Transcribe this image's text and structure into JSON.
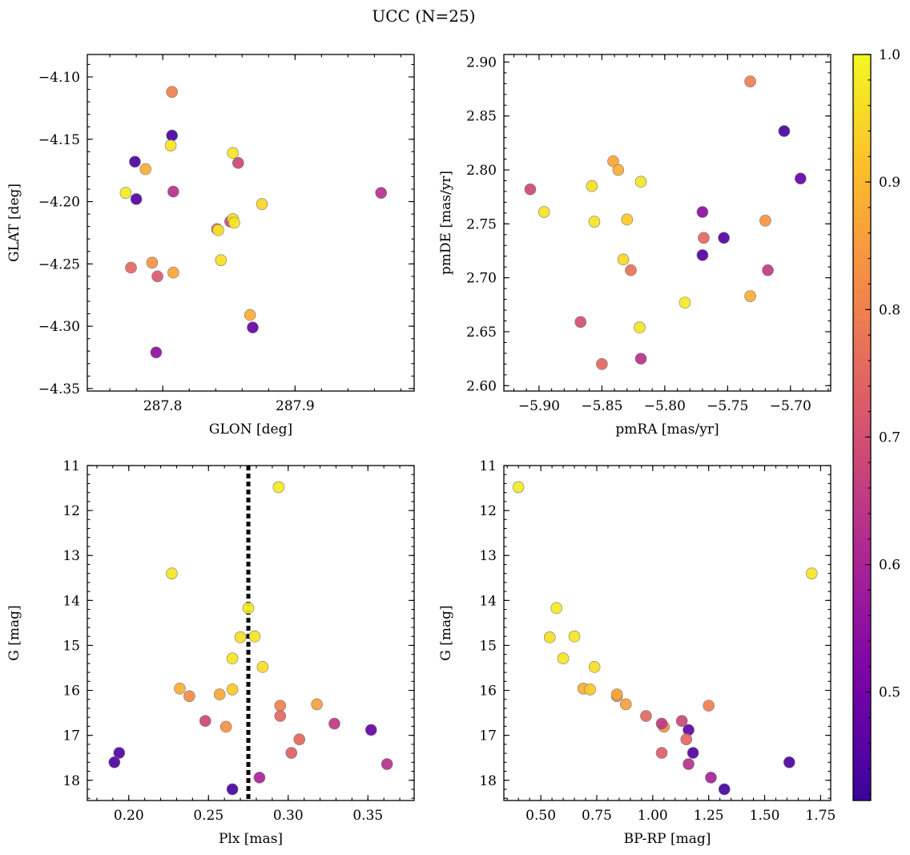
{
  "figure": {
    "suptitle": "UCC (N=25)"
  },
  "colorbar": {
    "colormap": "plasma",
    "range": [
      0.415,
      1.0
    ],
    "ticks": [
      0.5,
      0.6,
      0.7,
      0.8,
      0.9,
      1.0
    ],
    "tick_labels": [
      "0.5",
      "0.6",
      "0.7",
      "0.8",
      "0.9",
      "1.0"
    ]
  },
  "chart_data": [
    {
      "type": "scatter",
      "xlabel": "GLON [deg]",
      "ylabel": "GLAT [deg]",
      "xlim": [
        287.743,
        287.99
      ],
      "ylim": [
        -4.352,
        -4.082
      ],
      "yinvert": false,
      "xticks": [
        287.8,
        287.9
      ],
      "xtick_labels": [
        "287.8",
        "287.9"
      ],
      "yticks": [
        -4.35,
        -4.3,
        -4.25,
        -4.2,
        -4.15,
        -4.1
      ],
      "ytick_labels": [
        "−4.35",
        "−4.30",
        "−4.25",
        "−4.20",
        "−4.15",
        "−4.10"
      ],
      "points": [
        {
          "x": 287.807,
          "y": -4.112,
          "c": 0.8
        },
        {
          "x": 287.807,
          "y": -4.147,
          "c": 0.43
        },
        {
          "x": 287.806,
          "y": -4.155,
          "c": 0.97
        },
        {
          "x": 287.779,
          "y": -4.168,
          "c": 0.45
        },
        {
          "x": 287.787,
          "y": -4.174,
          "c": 0.88
        },
        {
          "x": 287.853,
          "y": -4.161,
          "c": 0.97
        },
        {
          "x": 287.857,
          "y": -4.169,
          "c": 0.68
        },
        {
          "x": 287.772,
          "y": -4.193,
          "c": 0.98
        },
        {
          "x": 287.78,
          "y": -4.198,
          "c": 0.45
        },
        {
          "x": 287.808,
          "y": -4.192,
          "c": 0.63
        },
        {
          "x": 287.965,
          "y": -4.193,
          "c": 0.63
        },
        {
          "x": 287.875,
          "y": -4.202,
          "c": 0.95
        },
        {
          "x": 287.851,
          "y": -4.216,
          "c": 0.69
        },
        {
          "x": 287.853,
          "y": -4.214,
          "c": 0.96
        },
        {
          "x": 287.854,
          "y": -4.217,
          "c": 0.97
        },
        {
          "x": 287.841,
          "y": -4.222,
          "c": 0.78
        },
        {
          "x": 287.842,
          "y": -4.223,
          "c": 0.97
        },
        {
          "x": 287.844,
          "y": -4.247,
          "c": 0.96
        },
        {
          "x": 287.776,
          "y": -4.253,
          "c": 0.75
        },
        {
          "x": 287.792,
          "y": -4.249,
          "c": 0.84
        },
        {
          "x": 287.808,
          "y": -4.257,
          "c": 0.87
        },
        {
          "x": 287.796,
          "y": -4.26,
          "c": 0.72
        },
        {
          "x": 287.866,
          "y": -4.291,
          "c": 0.88
        },
        {
          "x": 287.868,
          "y": -4.301,
          "c": 0.48
        },
        {
          "x": 287.795,
          "y": -4.321,
          "c": 0.55
        }
      ]
    },
    {
      "type": "scatter",
      "xlabel": "pmRA [mas/yr]",
      "ylabel": "pmDE [mas/yr]",
      "xlim": [
        -5.928,
        -5.668
      ],
      "ylim": [
        2.595,
        2.907
      ],
      "yinvert": false,
      "xticks": [
        -5.9,
        -5.85,
        -5.8,
        -5.75,
        -5.7
      ],
      "xtick_labels": [
        "−5.90",
        "−5.85",
        "−5.80",
        "−5.75",
        "−5.70"
      ],
      "yticks": [
        2.6,
        2.65,
        2.7,
        2.75,
        2.8,
        2.85,
        2.9
      ],
      "ytick_labels": [
        "2.60",
        "2.65",
        "2.70",
        "2.75",
        "2.80",
        "2.85",
        "2.90"
      ],
      "points": [
        {
          "x": -5.732,
          "y": 2.882,
          "c": 0.8
        },
        {
          "x": -5.705,
          "y": 2.836,
          "c": 0.43
        },
        {
          "x": -5.841,
          "y": 2.808,
          "c": 0.87
        },
        {
          "x": -5.837,
          "y": 2.8,
          "c": 0.88
        },
        {
          "x": -5.692,
          "y": 2.792,
          "c": 0.48
        },
        {
          "x": -5.819,
          "y": 2.789,
          "c": 0.97
        },
        {
          "x": -5.858,
          "y": 2.785,
          "c": 0.96
        },
        {
          "x": -5.907,
          "y": 2.782,
          "c": 0.68
        },
        {
          "x": -5.896,
          "y": 2.761,
          "c": 0.97
        },
        {
          "x": -5.77,
          "y": 2.761,
          "c": 0.55
        },
        {
          "x": -5.856,
          "y": 2.752,
          "c": 0.97
        },
        {
          "x": -5.83,
          "y": 2.754,
          "c": 0.93
        },
        {
          "x": -5.72,
          "y": 2.753,
          "c": 0.84
        },
        {
          "x": -5.769,
          "y": 2.737,
          "c": 0.75
        },
        {
          "x": -5.753,
          "y": 2.737,
          "c": 0.45
        },
        {
          "x": -5.833,
          "y": 2.717,
          "c": 0.95
        },
        {
          "x": -5.827,
          "y": 2.707,
          "c": 0.77
        },
        {
          "x": -5.718,
          "y": 2.707,
          "c": 0.65
        },
        {
          "x": -5.77,
          "y": 2.721,
          "c": 0.45
        },
        {
          "x": -5.732,
          "y": 2.683,
          "c": 0.88
        },
        {
          "x": -5.784,
          "y": 2.677,
          "c": 0.98
        },
        {
          "x": -5.867,
          "y": 2.659,
          "c": 0.7
        },
        {
          "x": -5.82,
          "y": 2.654,
          "c": 0.97
        },
        {
          "x": -5.819,
          "y": 2.625,
          "c": 0.63
        },
        {
          "x": -5.85,
          "y": 2.62,
          "c": 0.75
        }
      ]
    },
    {
      "type": "scatter",
      "xlabel": "Plx [mas]",
      "ylabel": "G [mag]",
      "xlim": [
        0.174,
        0.379
      ],
      "ylim": [
        18.45,
        11.0
      ],
      "yinvert": true,
      "xticks": [
        0.2,
        0.25,
        0.3,
        0.35
      ],
      "xtick_labels": [
        "0.20",
        "0.25",
        "0.30",
        "0.35"
      ],
      "yticks": [
        11,
        12,
        13,
        14,
        15,
        16,
        17,
        18
      ],
      "ytick_labels": [
        "11",
        "12",
        "13",
        "14",
        "15",
        "16",
        "17",
        "18"
      ],
      "vline": {
        "x": 0.275,
        "style": "dotted"
      },
      "points": [
        {
          "x": 0.294,
          "y": 11.48,
          "c": 0.98
        },
        {
          "x": 0.227,
          "y": 13.4,
          "c": 0.97
        },
        {
          "x": 0.275,
          "y": 14.17,
          "c": 0.98
        },
        {
          "x": 0.27,
          "y": 14.82,
          "c": 0.96
        },
        {
          "x": 0.279,
          "y": 14.8,
          "c": 0.97
        },
        {
          "x": 0.265,
          "y": 15.29,
          "c": 0.97
        },
        {
          "x": 0.284,
          "y": 15.48,
          "c": 0.96
        },
        {
          "x": 0.232,
          "y": 15.96,
          "c": 0.88
        },
        {
          "x": 0.265,
          "y": 15.98,
          "c": 0.93
        },
        {
          "x": 0.238,
          "y": 16.13,
          "c": 0.82
        },
        {
          "x": 0.257,
          "y": 16.09,
          "c": 0.87
        },
        {
          "x": 0.295,
          "y": 16.34,
          "c": 0.8
        },
        {
          "x": 0.318,
          "y": 16.31,
          "c": 0.86
        },
        {
          "x": 0.295,
          "y": 16.57,
          "c": 0.75
        },
        {
          "x": 0.248,
          "y": 16.68,
          "c": 0.68
        },
        {
          "x": 0.261,
          "y": 16.81,
          "c": 0.83
        },
        {
          "x": 0.329,
          "y": 16.74,
          "c": 0.65
        },
        {
          "x": 0.352,
          "y": 16.88,
          "c": 0.48
        },
        {
          "x": 0.307,
          "y": 17.09,
          "c": 0.75
        },
        {
          "x": 0.302,
          "y": 17.39,
          "c": 0.73
        },
        {
          "x": 0.194,
          "y": 17.39,
          "c": 0.45
        },
        {
          "x": 0.191,
          "y": 17.6,
          "c": 0.44
        },
        {
          "x": 0.362,
          "y": 17.64,
          "c": 0.63
        },
        {
          "x": 0.282,
          "y": 17.94,
          "c": 0.6
        },
        {
          "x": 0.265,
          "y": 18.2,
          "c": 0.43
        }
      ]
    },
    {
      "type": "scatter",
      "xlabel": "BP-RP [mag]",
      "ylabel": "G [mag]",
      "xlim": [
        0.335,
        1.795
      ],
      "ylim": [
        18.45,
        11.0
      ],
      "yinvert": true,
      "xticks": [
        0.5,
        0.75,
        1.0,
        1.25,
        1.5,
        1.75
      ],
      "xtick_labels": [
        "0.50",
        "0.75",
        "1.00",
        "1.25",
        "1.50",
        "1.75"
      ],
      "yticks": [
        11,
        12,
        13,
        14,
        15,
        16,
        17,
        18
      ],
      "ytick_labels": [
        "11",
        "12",
        "13",
        "14",
        "15",
        "16",
        "17",
        "18"
      ],
      "points": [
        {
          "x": 0.4,
          "y": 11.48,
          "c": 0.98
        },
        {
          "x": 1.71,
          "y": 13.4,
          "c": 0.97
        },
        {
          "x": 0.57,
          "y": 14.17,
          "c": 0.98
        },
        {
          "x": 0.54,
          "y": 14.82,
          "c": 0.96
        },
        {
          "x": 0.65,
          "y": 14.8,
          "c": 0.97
        },
        {
          "x": 0.6,
          "y": 15.29,
          "c": 0.97
        },
        {
          "x": 0.74,
          "y": 15.48,
          "c": 0.96
        },
        {
          "x": 0.69,
          "y": 15.96,
          "c": 0.88
        },
        {
          "x": 0.72,
          "y": 15.98,
          "c": 0.93
        },
        {
          "x": 0.84,
          "y": 16.13,
          "c": 0.82
        },
        {
          "x": 0.84,
          "y": 16.09,
          "c": 0.87
        },
        {
          "x": 1.25,
          "y": 16.34,
          "c": 0.8
        },
        {
          "x": 0.88,
          "y": 16.31,
          "c": 0.86
        },
        {
          "x": 0.97,
          "y": 16.57,
          "c": 0.75
        },
        {
          "x": 1.13,
          "y": 16.68,
          "c": 0.68
        },
        {
          "x": 1.05,
          "y": 16.81,
          "c": 0.83
        },
        {
          "x": 1.04,
          "y": 16.74,
          "c": 0.65
        },
        {
          "x": 1.16,
          "y": 16.88,
          "c": 0.48
        },
        {
          "x": 1.15,
          "y": 17.09,
          "c": 0.75
        },
        {
          "x": 1.04,
          "y": 17.39,
          "c": 0.73
        },
        {
          "x": 1.18,
          "y": 17.39,
          "c": 0.45
        },
        {
          "x": 1.61,
          "y": 17.6,
          "c": 0.44
        },
        {
          "x": 1.16,
          "y": 17.64,
          "c": 0.63
        },
        {
          "x": 1.26,
          "y": 17.94,
          "c": 0.6
        },
        {
          "x": 1.32,
          "y": 18.2,
          "c": 0.43
        }
      ]
    }
  ]
}
